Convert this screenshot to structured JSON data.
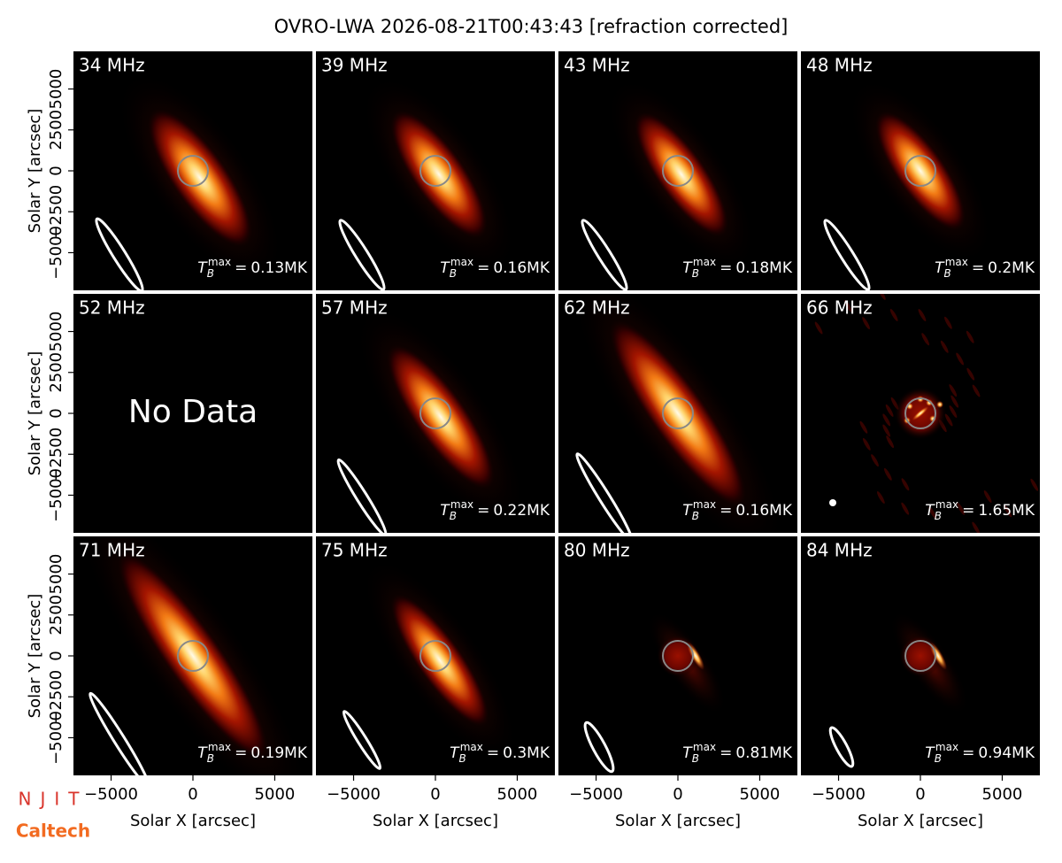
{
  "title": "OVRO-LWA 2026-08-21T00:43:43 [refraction corrected]",
  "axes": {
    "xlabel": "Solar X [arcsec]",
    "ylabel": "Solar Y [arcsec]",
    "xlim": [
      -7300,
      7300
    ],
    "ylim": [
      -7300,
      7300
    ],
    "xticks": [
      {
        "value": -5000,
        "label": "−5000"
      },
      0,
      5000
    ],
    "yticks": [
      {
        "value": -5000,
        "label": "−5000"
      },
      {
        "value": -2500,
        "label": "−2500"
      },
      0,
      2500,
      5000
    ]
  },
  "tmax_symbol": "T",
  "tmax_subscript": "B",
  "tmax_superscript": "max",
  "tmax_equals": "=",
  "no_data_label": "No Data",
  "logos": [
    "NJIT",
    "Caltech"
  ],
  "chart_data": [
    {
      "type": "image",
      "title": "34 MHz",
      "tmax": 0.13,
      "tmax_label": "0.13MK"
    },
    {
      "type": "image",
      "title": "39 MHz",
      "tmax": 0.16,
      "tmax_label": "0.16MK"
    },
    {
      "type": "image",
      "title": "43 MHz",
      "tmax": 0.18,
      "tmax_label": "0.18MK"
    },
    {
      "type": "image",
      "title": "48 MHz",
      "tmax": 0.2,
      "tmax_label": "0.2MK"
    },
    {
      "type": "empty",
      "title": "52 MHz"
    },
    {
      "type": "image",
      "title": "57 MHz",
      "tmax": 0.22,
      "tmax_label": "0.22MK"
    },
    {
      "type": "image",
      "title": "62 MHz",
      "tmax": 0.16,
      "tmax_label": "0.16MK"
    },
    {
      "type": "image",
      "title": "66 MHz",
      "tmax": 1.65,
      "tmax_label": "1.65MK"
    },
    {
      "type": "image",
      "title": "71 MHz",
      "tmax": 0.19,
      "tmax_label": "0.19MK"
    },
    {
      "type": "image",
      "title": "75 MHz",
      "tmax": 0.3,
      "tmax_label": "0.3MK"
    },
    {
      "type": "image",
      "title": "80 MHz",
      "tmax": 0.81,
      "tmax_label": "0.81MK"
    },
    {
      "type": "image",
      "title": "84 MHz",
      "tmax": 0.94,
      "tmax_label": "0.94MK"
    }
  ]
}
